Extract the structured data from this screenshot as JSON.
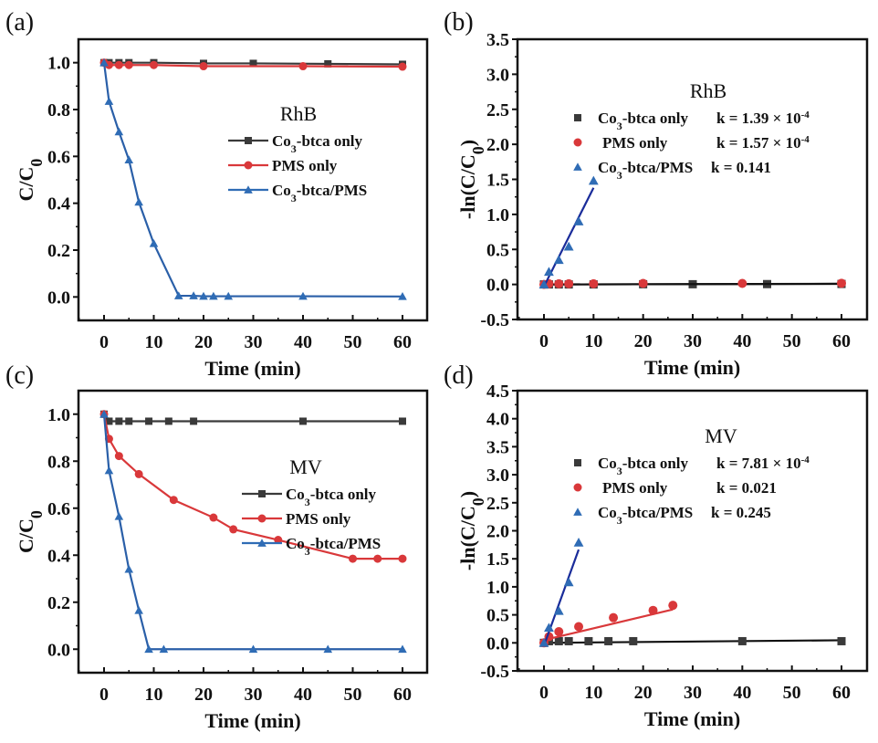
{
  "colors": {
    "black_series": "#3a3a3a",
    "red_series": "#d9383a",
    "blue_series": "#2f6cb5",
    "blue_fit": "#1a2c9a",
    "red_fit": "#d9383a",
    "black_fit": "#111111"
  },
  "chart_data": [
    {
      "id": "a",
      "panel_label": "(a)",
      "type": "line",
      "title": "RhB",
      "xlabel": "Time (min)",
      "ylabel": "C/C0",
      "xlim": [
        -5,
        65
      ],
      "ylim": [
        -0.1,
        1.1
      ],
      "xticks": [
        0,
        10,
        20,
        30,
        40,
        50,
        60
      ],
      "yticks": [
        0.0,
        0.2,
        0.4,
        0.6,
        0.8,
        1.0
      ],
      "ytick_labels": [
        "0.0",
        "0.2",
        "0.4",
        "0.6",
        "0.8",
        "1.0"
      ],
      "legend": {
        "title": "RhB",
        "placement": "center-right",
        "style": "line-marker"
      },
      "series": [
        {
          "name": "Co3-btca only",
          "label_main": "Co",
          "label_sub": "3",
          "label_rest": "-btca only",
          "color_key": "black_series",
          "marker": "square",
          "x": [
            0,
            1,
            3,
            5,
            10,
            20,
            30,
            45,
            60
          ],
          "y": [
            1.0,
            1.0,
            1.0,
            1.0,
            1.0,
            0.997,
            0.997,
            0.995,
            0.993
          ]
        },
        {
          "name": "PMS only",
          "label_main": "PMS only",
          "label_sub": "",
          "label_rest": "",
          "color_key": "red_series",
          "marker": "circle",
          "x": [
            0,
            1,
            3,
            5,
            10,
            20,
            40,
            60
          ],
          "y": [
            1.0,
            0.99,
            0.99,
            0.99,
            0.99,
            0.985,
            0.985,
            0.983
          ]
        },
        {
          "name": "Co3-btca/PMS",
          "label_main": "Co",
          "label_sub": "3",
          "label_rest": "-btca/PMS",
          "color_key": "blue_series",
          "marker": "triangle",
          "x": [
            0,
            1,
            3,
            5,
            7,
            10,
            15,
            18,
            20,
            22,
            25,
            40,
            60
          ],
          "y": [
            1.0,
            0.835,
            0.705,
            0.585,
            0.405,
            0.228,
            0.005,
            0.005,
            0.003,
            0.003,
            0.003,
            0.003,
            0.002
          ]
        }
      ]
    },
    {
      "id": "b",
      "panel_label": "(b)",
      "type": "scatter",
      "title": "RhB",
      "xlabel": "Time (min)",
      "ylabel": "-ln(C/C0)",
      "xlim": [
        -5,
        65
      ],
      "ylim": [
        -0.5,
        3.5
      ],
      "xticks": [
        0,
        10,
        20,
        30,
        40,
        50,
        60
      ],
      "yticks": [
        -0.5,
        0.0,
        0.5,
        1.0,
        1.5,
        2.0,
        2.5,
        3.0,
        3.5
      ],
      "ytick_labels": [
        "-0.5",
        "0.0",
        "0.5",
        "1.0",
        "1.5",
        "2.0",
        "2.5",
        "3.0",
        "3.5"
      ],
      "legend": {
        "title": "RhB",
        "placement": "top-right",
        "style": "marker-only"
      },
      "series": [
        {
          "name": "Co3-btca only",
          "label_main": "Co",
          "label_sub": "3",
          "label_rest": "-btca only",
          "k_text": "k = 1.39 × 10",
          "k_exp": "-4",
          "color_key": "black_series",
          "marker": "square",
          "x": [
            0,
            1,
            3,
            5,
            10,
            20,
            30,
            45,
            60
          ],
          "y": [
            0,
            0,
            0,
            0,
            0,
            0.003,
            0.003,
            0.005,
            0.007
          ],
          "fit": {
            "slope": 0.000139,
            "x_range": [
              0,
              60
            ],
            "color_key": "black_fit"
          }
        },
        {
          "name": "PMS only",
          "label_main": "PMS only",
          "label_sub": "",
          "label_rest": "",
          "k_text": "k = 1.57 × 10",
          "k_exp": "-4",
          "color_key": "red_series",
          "marker": "circle",
          "x": [
            0,
            1,
            3,
            5,
            10,
            20,
            40,
            60
          ],
          "y": [
            0,
            0.01,
            0.01,
            0.01,
            0.01,
            0.015,
            0.015,
            0.017
          ],
          "fit": {
            "slope": 0.000157,
            "x_range": [
              0,
              60
            ],
            "color_key": "black_fit"
          }
        },
        {
          "name": "Co3-btca/PMS",
          "label_main": "Co",
          "label_sub": "3",
          "label_rest": "-btca/PMS",
          "k_text": "k = 0.141",
          "k_exp": "",
          "color_key": "blue_series",
          "marker": "triangle",
          "x": [
            0,
            1,
            3,
            5,
            7,
            10
          ],
          "y": [
            0,
            0.18,
            0.35,
            0.54,
            0.9,
            1.48
          ],
          "fit": {
            "slope": 0.141,
            "intercept": -0.03,
            "x_range": [
              0,
              10
            ],
            "color_key": "blue_fit"
          }
        }
      ]
    },
    {
      "id": "c",
      "panel_label": "(c)",
      "type": "line",
      "title": "MV",
      "xlabel": "Time (min)",
      "ylabel": "C/C0",
      "xlim": [
        -5,
        65
      ],
      "ylim": [
        -0.1,
        1.1
      ],
      "xticks": [
        0,
        10,
        20,
        30,
        40,
        50,
        60
      ],
      "yticks": [
        0.0,
        0.2,
        0.4,
        0.6,
        0.8,
        1.0
      ],
      "ytick_labels": [
        "0.0",
        "0.2",
        "0.4",
        "0.6",
        "0.8",
        "1.0"
      ],
      "legend": {
        "title": "MV",
        "placement": "center-right",
        "style": "line-marker"
      },
      "series": [
        {
          "name": "Co3-btca only",
          "label_main": "Co",
          "label_sub": "3",
          "label_rest": "-btca only",
          "color_key": "black_series",
          "marker": "square",
          "x": [
            0,
            1,
            3,
            5,
            9,
            13,
            18,
            40,
            60
          ],
          "y": [
            1.0,
            0.97,
            0.97,
            0.97,
            0.97,
            0.97,
            0.97,
            0.97,
            0.97
          ]
        },
        {
          "name": "PMS only",
          "label_main": "PMS only",
          "label_sub": "",
          "label_rest": "",
          "color_key": "red_series",
          "marker": "circle",
          "x": [
            0,
            1,
            3,
            7,
            14,
            22,
            26,
            35,
            50,
            55,
            60
          ],
          "y": [
            1.0,
            0.895,
            0.822,
            0.745,
            0.635,
            0.56,
            0.51,
            0.465,
            0.385,
            0.385,
            0.385
          ]
        },
        {
          "name": "Co3-btca/PMS",
          "label_main": "Co",
          "label_sub": "3",
          "label_rest": "-btca/PMS",
          "color_key": "blue_series",
          "marker": "triangle",
          "x": [
            0,
            1,
            3,
            5,
            7,
            9,
            12,
            30,
            45,
            60
          ],
          "y": [
            1.0,
            0.76,
            0.565,
            0.34,
            0.165,
            0.0,
            0.0,
            0.0,
            0.0,
            0.0
          ]
        }
      ]
    },
    {
      "id": "d",
      "panel_label": "(d)",
      "type": "scatter",
      "title": "MV",
      "xlabel": "Time (min)",
      "ylabel": "-ln(C/C0)",
      "xlim": [
        -5,
        65
      ],
      "ylim": [
        -0.5,
        4.5
      ],
      "xticks": [
        0,
        10,
        20,
        30,
        40,
        50,
        60
      ],
      "yticks": [
        -0.5,
        0.0,
        0.5,
        1.0,
        1.5,
        2.0,
        2.5,
        3.0,
        3.5,
        4.0,
        4.5
      ],
      "ytick_labels": [
        "-0.5",
        "0.0",
        "0.5",
        "1.0",
        "1.5",
        "2.0",
        "2.5",
        "3.0",
        "3.5",
        "4.0",
        "4.5"
      ],
      "legend": {
        "title": "MV",
        "placement": "top-right",
        "style": "marker-only"
      },
      "series": [
        {
          "name": "Co3-btca only",
          "label_main": "Co",
          "label_sub": "3",
          "label_rest": "-btca only",
          "k_text": "k = 7.81 × 10",
          "k_exp": "-4",
          "color_key": "black_series",
          "marker": "square",
          "x": [
            0,
            1,
            3,
            5,
            9,
            13,
            18,
            40,
            60
          ],
          "y": [
            0,
            0.03,
            0.03,
            0.03,
            0.03,
            0.03,
            0.03,
            0.03,
            0.03
          ],
          "fit": {
            "slope": 0.000781,
            "x_range": [
              0,
              60
            ],
            "color_key": "black_fit"
          }
        },
        {
          "name": "PMS only",
          "label_main": "PMS only",
          "label_sub": "",
          "label_rest": "",
          "k_text": "k = 0.021",
          "k_exp": "",
          "color_key": "red_series",
          "marker": "circle",
          "x": [
            0,
            1,
            3,
            7,
            14,
            22,
            26
          ],
          "y": [
            0,
            0.11,
            0.2,
            0.29,
            0.45,
            0.58,
            0.67
          ],
          "fit": {
            "slope": 0.021,
            "intercept": 0.05,
            "x_range": [
              0,
              26
            ],
            "color_key": "red_fit"
          }
        },
        {
          "name": "Co3-btca/PMS",
          "label_main": "Co",
          "label_sub": "3",
          "label_rest": "-btca/PMS",
          "k_text": "k = 0.245",
          "k_exp": "",
          "color_key": "blue_series",
          "marker": "triangle",
          "x": [
            0,
            1,
            3,
            5,
            7
          ],
          "y": [
            0,
            0.27,
            0.57,
            1.08,
            1.79
          ],
          "fit": {
            "slope": 0.245,
            "intercept": -0.05,
            "x_range": [
              0,
              7
            ],
            "color_key": "blue_fit"
          }
        }
      ]
    }
  ]
}
